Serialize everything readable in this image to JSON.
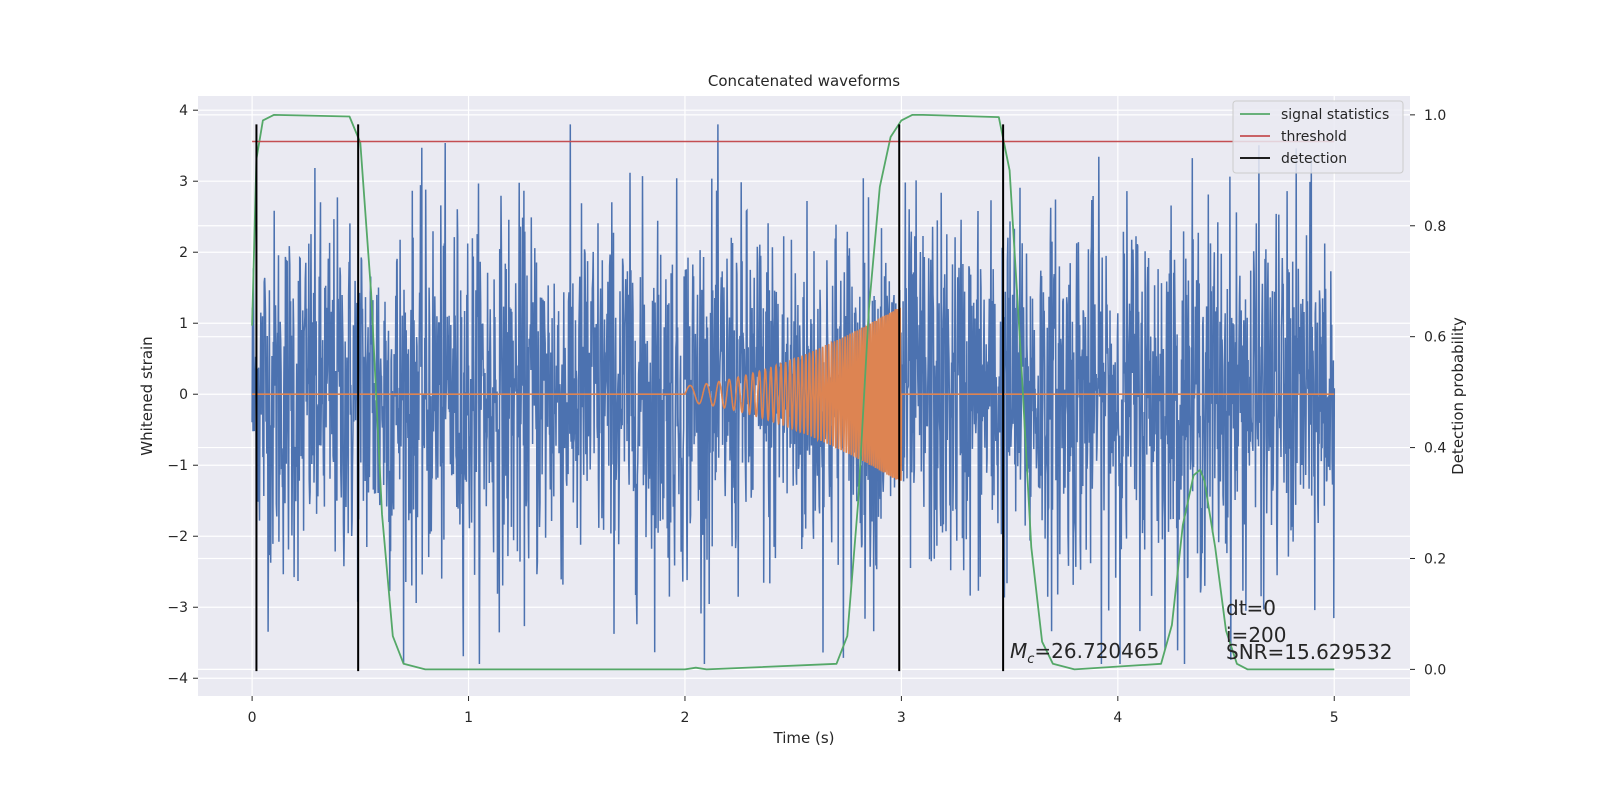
{
  "chart_data": {
    "type": "line",
    "title": "Concatenated waveforms",
    "xlabel": "Time (s)",
    "ylabel": "Whitened strain",
    "y2label": "Detection probability",
    "xlim": [
      -0.25,
      5.35
    ],
    "ylim": [
      -4.25,
      4.2
    ],
    "y2lim": [
      -0.048,
      1.034
    ],
    "xticks": [
      0,
      1,
      2,
      3,
      4,
      5
    ],
    "yticks": [
      -4,
      -3,
      -2,
      -1,
      0,
      1,
      2,
      3,
      4
    ],
    "y2ticks": [
      0.0,
      0.2,
      0.4,
      0.6,
      0.8,
      1.0
    ],
    "y2ticklabels": [
      "0.0",
      "0.2",
      "0.4",
      "0.6",
      "0.8",
      "1.0"
    ],
    "grid": true,
    "legend_position": "top-right",
    "colors": {
      "background": "#eaeaf2",
      "strain": "#4c72b0",
      "template": "#dd8452",
      "signal_statistics": "#55a868",
      "threshold": "#c44e52",
      "detection": "#000000"
    },
    "series": [
      {
        "name": "signal statistics",
        "axis": "right",
        "x": [
          0.0,
          0.02,
          0.05,
          0.1,
          0.45,
          0.5,
          0.55,
          0.6,
          0.65,
          0.7,
          0.8,
          2.0,
          2.05,
          2.1,
          2.7,
          2.75,
          2.8,
          2.85,
          2.9,
          2.95,
          3.0,
          3.05,
          3.1,
          3.45,
          3.5,
          3.55,
          3.6,
          3.65,
          3.7,
          3.8,
          4.2,
          4.25,
          4.3,
          4.35,
          4.38,
          4.4,
          4.45,
          4.5,
          4.55,
          4.6,
          5.0
        ],
        "y": [
          0.62,
          0.92,
          0.99,
          1.0,
          0.997,
          0.95,
          0.68,
          0.28,
          0.06,
          0.01,
          0.0,
          0.0,
          0.003,
          0.0,
          0.01,
          0.06,
          0.3,
          0.65,
          0.87,
          0.96,
          0.99,
          1.0,
          1.0,
          0.996,
          0.9,
          0.58,
          0.22,
          0.05,
          0.01,
          0.0,
          0.01,
          0.08,
          0.26,
          0.35,
          0.36,
          0.34,
          0.22,
          0.07,
          0.01,
          0.0,
          0.0
        ]
      },
      {
        "name": "threshold",
        "axis": "right",
        "x": [
          0.0,
          5.0
        ],
        "y": [
          0.952,
          0.952
        ]
      },
      {
        "name": "detection",
        "axis": "left",
        "vertical_lines_x": [
          0.02,
          0.49,
          2.99,
          3.47
        ],
        "y_range": [
          -3.9,
          3.8
        ]
      },
      {
        "name": "",
        "axis": "left",
        "description": "whitened strain noise",
        "x_range": [
          0.0,
          5.0
        ],
        "amplitude_typical": 1.5,
        "amplitude_peak": 3.8
      },
      {
        "name": "",
        "axis": "left",
        "description": "chirp template",
        "flat_before": 2.0,
        "chirp_x_range": [
          2.0,
          3.0
        ],
        "end_amplitude": 1.25,
        "flat_after": 3.0
      }
    ],
    "annotations": {
      "mc_symbol": "M",
      "mc_sub": "c",
      "mc_value": "=26.720465",
      "dt": "dt=0",
      "i": "i=200",
      "snr": "SNR=15.629532"
    }
  }
}
